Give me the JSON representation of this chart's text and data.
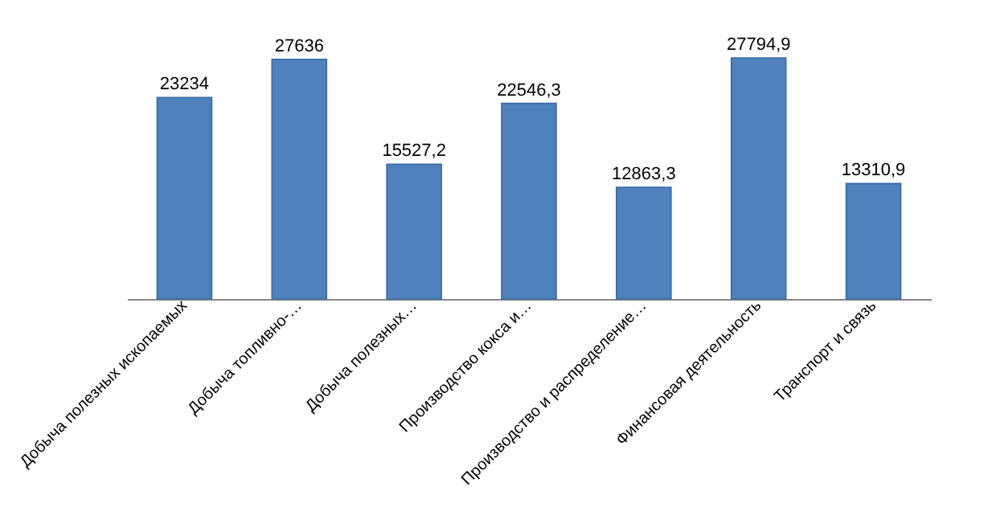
{
  "chart_data": {
    "type": "bar",
    "categories": [
      "Добыча полезных ископаемых",
      "Добыча топливно-…",
      "Добыча полезных…",
      "Производство кокса и…",
      "Производство и распределение…",
      "Финансовая деятельность",
      "Транспорт и связь"
    ],
    "values": [
      23234,
      27636,
      15527.2,
      22546.3,
      12863.3,
      27794.9,
      13310.9
    ],
    "value_labels": [
      "23234",
      "27636",
      "15527,2",
      "22546,3",
      "12863,3",
      "27794,9",
      "13310,9"
    ],
    "color": "#4f81bd",
    "grid": false
  }
}
